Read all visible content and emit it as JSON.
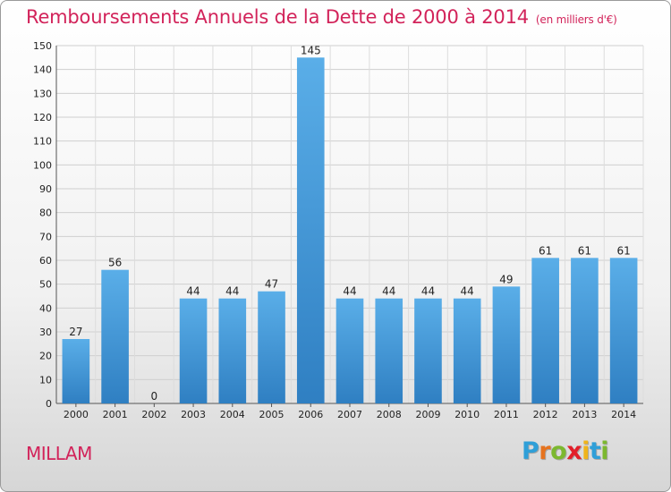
{
  "chart_data": {
    "type": "bar",
    "title": "Remboursements Annuels de la Dette de 2000 à 2014",
    "subtitle": "(en milliers d'€)",
    "xlabel": "",
    "ylabel": "",
    "categories": [
      "2000",
      "2001",
      "2002",
      "2003",
      "2004",
      "2005",
      "2006",
      "2007",
      "2008",
      "2009",
      "2010",
      "2011",
      "2012",
      "2013",
      "2014"
    ],
    "values": [
      27,
      56,
      0,
      44,
      44,
      47,
      145,
      44,
      44,
      44,
      44,
      49,
      61,
      61,
      61
    ],
    "ylim": [
      0,
      150
    ],
    "yticks": [
      0,
      10,
      20,
      30,
      40,
      50,
      60,
      70,
      80,
      90,
      100,
      110,
      120,
      130,
      140,
      150
    ],
    "grid": true,
    "legend": "none",
    "bar_color": "#4f9fdc"
  },
  "footer": {
    "commune": "MILLAM",
    "logo_letters": [
      {
        "char": "P",
        "color": "#2f9fd8"
      },
      {
        "char": "r",
        "color": "#e6731e"
      },
      {
        "char": "o",
        "color": "#7cb82f"
      },
      {
        "char": "x",
        "color": "#e21f2a"
      },
      {
        "char": "i",
        "color": "#f0b41a"
      },
      {
        "char": "t",
        "color": "#2f9fd8"
      },
      {
        "char": "i",
        "color": "#7cb82f"
      }
    ]
  }
}
